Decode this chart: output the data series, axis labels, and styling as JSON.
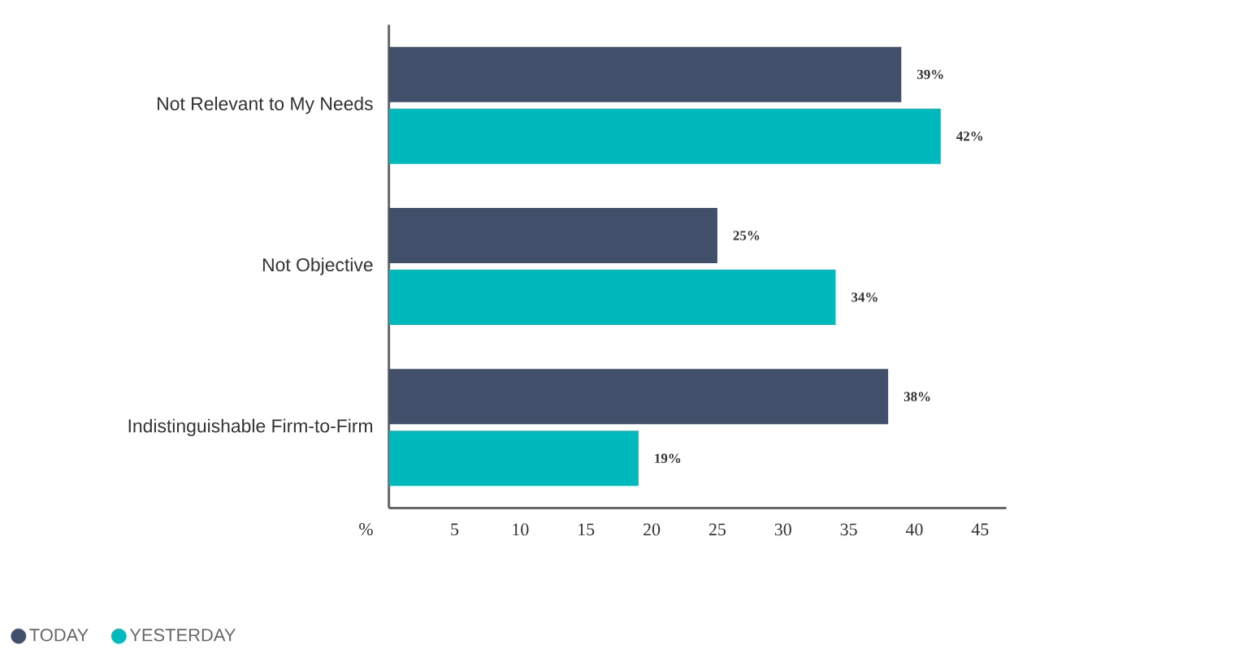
{
  "chart_data": {
    "type": "bar",
    "orientation": "horizontal",
    "categories": [
      "Not Relevant to My Needs",
      "Not Objective",
      "Indistinguishable Firm-to-Firm"
    ],
    "series": [
      {
        "name": "TODAY",
        "color": "#414f6b",
        "values": [
          39,
          25,
          38
        ],
        "value_labels": [
          "39%",
          "25%",
          "38%"
        ]
      },
      {
        "name": "YESTERDAY",
        "color": "#00b9bd",
        "values": [
          42,
          34,
          19
        ],
        "value_labels": [
          "42%",
          "34%",
          "19%"
        ]
      }
    ],
    "xlabel": "%",
    "xlim": [
      0,
      47
    ],
    "xticks": [
      5,
      10,
      15,
      20,
      25,
      30,
      35,
      40,
      45
    ],
    "grid": false,
    "legend": "bottom left",
    "marker": "circle"
  }
}
